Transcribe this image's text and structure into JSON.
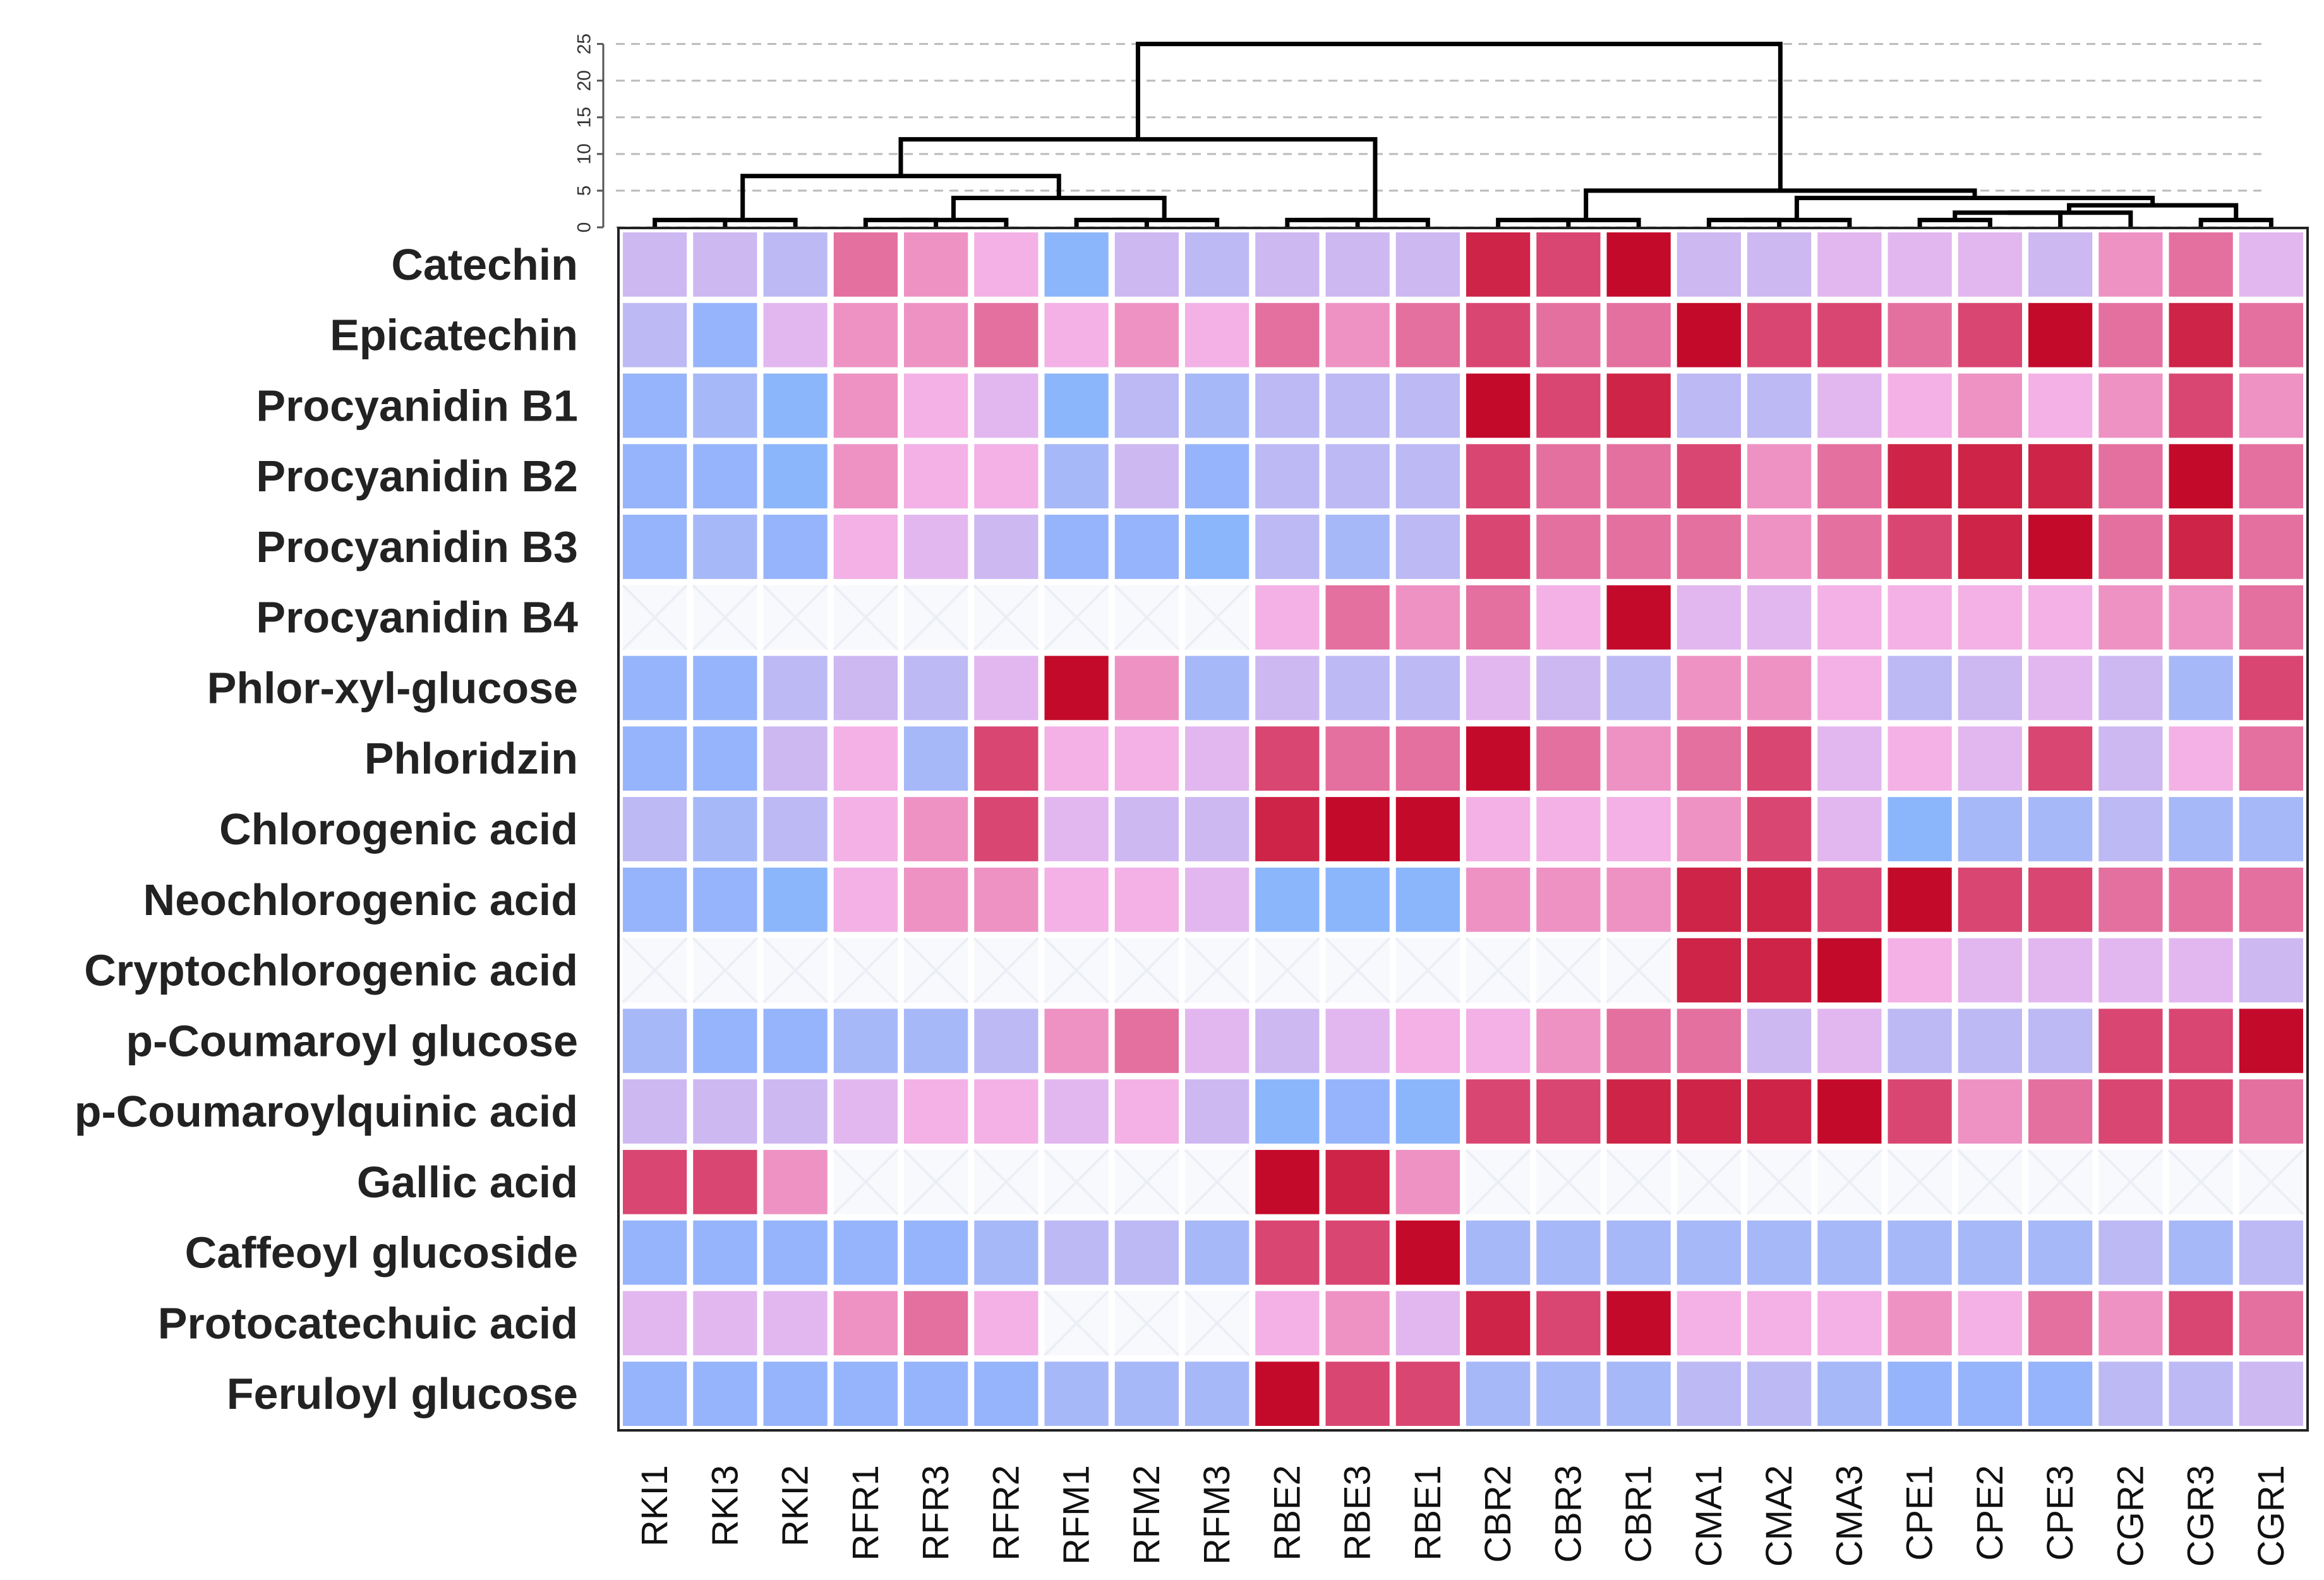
{
  "chart_data": {
    "type": "heatmap",
    "title": "",
    "rows": [
      "Catechin",
      "Epicatechin",
      "Procyanidin B1",
      "Procyanidin B2",
      "Procyanidin B3",
      "Procyanidin B4",
      "Phlor-xyl-glucose",
      "Phloridzin",
      "Chlorogenic acid",
      "Neochlorogenic acid",
      "Cryptochlorogenic acid",
      "p-Coumaroyl glucose",
      "p-Coumaroylquinic acid",
      "Gallic acid",
      "Caffeoyl glucoside",
      "Protocatechuic acid",
      "Feruloyl glucose"
    ],
    "columns": [
      "RKI1",
      "RKI3",
      "RKI2",
      "RFR1",
      "RFR3",
      "RFR2",
      "RFM1",
      "RFM2",
      "RFM3",
      "RBE2",
      "RBE3",
      "RBE1",
      "CBR2",
      "CBR3",
      "CBR1",
      "CMA1",
      "CMA2",
      "CMA3",
      "CPE1",
      "CPE2",
      "CPE3",
      "CGR2",
      "CGR3",
      "CGR1"
    ],
    "value_scale": "level from -4 (blue) through 0 (lilac) to +7 (dark red); null = not detected",
    "values": [
      [
        0,
        0,
        -1,
        4,
        3,
        2,
        -4,
        0,
        -1,
        0,
        0,
        0,
        6,
        5,
        7,
        0,
        0,
        1,
        1,
        1,
        0,
        3,
        4,
        1
      ],
      [
        -1,
        -3,
        1,
        3,
        3,
        4,
        2,
        3,
        2,
        4,
        3,
        4,
        5,
        4,
        4,
        7,
        5,
        5,
        4,
        5,
        7,
        4,
        6,
        4
      ],
      [
        -3,
        -2,
        -4,
        3,
        2,
        1,
        -4,
        -1,
        -2,
        -1,
        -1,
        -1,
        7,
        5,
        6,
        -1,
        -1,
        1,
        2,
        3,
        2,
        3,
        5,
        3
      ],
      [
        -3,
        -3,
        -4,
        3,
        2,
        2,
        -2,
        0,
        -3,
        -1,
        -1,
        -1,
        5,
        4,
        4,
        5,
        3,
        4,
        6,
        6,
        6,
        4,
        7,
        4
      ],
      [
        -3,
        -2,
        -3,
        2,
        1,
        0,
        -3,
        -3,
        -4,
        -1,
        -2,
        -1,
        5,
        4,
        4,
        4,
        3,
        4,
        5,
        6,
        7,
        4,
        6,
        4
      ],
      [
        null,
        null,
        null,
        null,
        null,
        null,
        null,
        null,
        null,
        2,
        4,
        3,
        4,
        2,
        7,
        1,
        1,
        2,
        2,
        2,
        2,
        3,
        3,
        4
      ],
      [
        -3,
        -3,
        -1,
        0,
        -1,
        1,
        7,
        3,
        -2,
        0,
        -1,
        -1,
        1,
        0,
        -1,
        3,
        3,
        2,
        -1,
        0,
        1,
        0,
        -2,
        5
      ],
      [
        -3,
        -3,
        0,
        2,
        -2,
        5,
        2,
        2,
        1,
        5,
        4,
        4,
        7,
        4,
        3,
        4,
        5,
        1,
        2,
        1,
        5,
        0,
        2,
        4
      ],
      [
        -1,
        -2,
        -1,
        2,
        3,
        5,
        1,
        0,
        0,
        6,
        7,
        7,
        2,
        2,
        2,
        3,
        5,
        1,
        -4,
        -2,
        -2,
        -1,
        -2,
        -2
      ],
      [
        -3,
        -3,
        -4,
        2,
        3,
        3,
        2,
        2,
        1,
        -4,
        -4,
        -4,
        3,
        3,
        3,
        6,
        6,
        5,
        7,
        5,
        5,
        4,
        4,
        4
      ],
      [
        null,
        null,
        null,
        null,
        null,
        null,
        null,
        null,
        null,
        null,
        null,
        null,
        null,
        null,
        null,
        6,
        6,
        7,
        2,
        1,
        1,
        1,
        1,
        0
      ],
      [
        -2,
        -3,
        -3,
        -2,
        -2,
        -1,
        3,
        4,
        1,
        0,
        1,
        2,
        2,
        3,
        4,
        4,
        0,
        1,
        -1,
        -1,
        -1,
        5,
        5,
        7
      ],
      [
        0,
        0,
        0,
        1,
        2,
        2,
        1,
        2,
        0,
        -4,
        -3,
        -4,
        5,
        5,
        6,
        6,
        6,
        7,
        5,
        3,
        4,
        5,
        5,
        4
      ],
      [
        5,
        5,
        3,
        null,
        null,
        null,
        null,
        null,
        null,
        7,
        6,
        3,
        null,
        null,
        null,
        null,
        null,
        null,
        null,
        null,
        null,
        null,
        null,
        null
      ],
      [
        -3,
        -3,
        -3,
        -3,
        -3,
        -2,
        -1,
        -1,
        -2,
        5,
        5,
        7,
        -2,
        -2,
        -2,
        -2,
        -2,
        -2,
        -2,
        -2,
        -2,
        -1,
        -2,
        -1
      ],
      [
        1,
        1,
        1,
        3,
        4,
        2,
        null,
        null,
        null,
        2,
        3,
        1,
        6,
        5,
        7,
        2,
        2,
        2,
        3,
        2,
        4,
        3,
        5,
        4
      ],
      [
        -3,
        -3,
        -3,
        -3,
        -3,
        -3,
        -2,
        -2,
        -2,
        7,
        5,
        5,
        -2,
        -2,
        -2,
        -1,
        -1,
        -2,
        -3,
        -3,
        -3,
        -1,
        -1,
        0
      ]
    ],
    "dendrogram": {
      "axis_ticks": [
        "0",
        "5",
        "10",
        "15",
        "20",
        "25"
      ],
      "ylim": [
        0,
        26
      ],
      "merges": [
        {
          "left": "RKI1",
          "right": "RKI3",
          "height": 1
        },
        {
          "left": "RFR1",
          "right": "RFR3",
          "height": 1
        },
        {
          "left": "RFR3",
          "right": "RFR2",
          "height": 1
        },
        {
          "left": "RFM1",
          "right": "RFM2",
          "height": 1
        },
        {
          "left": "RFM2",
          "right": "RFM3",
          "height": 1
        },
        {
          "left": "RBE2",
          "right": "RBE3",
          "height": 1
        },
        {
          "left": "RBE3",
          "right": "RBE1",
          "height": 1
        },
        {
          "left": "CBR2",
          "right": "CBR3",
          "height": 1
        },
        {
          "left": "CBR3",
          "right": "CBR1",
          "height": 1
        },
        {
          "left": "CMA1",
          "right": "CMA2",
          "height": 1
        },
        {
          "left": "CPE1",
          "right": "CPE2",
          "height": 1
        },
        {
          "left": "CGR3",
          "right": "CGR1",
          "height": 1
        },
        {
          "left": "RKI1-RKI3",
          "right": "RKI2",
          "height": 1
        },
        {
          "left": "CMA1-CMA2",
          "right": "CMA3",
          "height": 1
        },
        {
          "left": "CPE1-CPE2",
          "right": "CPE3",
          "height": 2
        },
        {
          "left": "CPE",
          "right": "CGR2",
          "height": 2
        },
        {
          "left": "CPE-CGR2",
          "right": "CGR3-CGR1",
          "height": 3
        },
        {
          "left": "CMA",
          "right": "CPE-CGR",
          "height": 4
        },
        {
          "left": "CBR",
          "right": "CMA-CPE-CGR",
          "height": 5
        },
        {
          "left": "RFR",
          "right": "RFM",
          "height": 4
        },
        {
          "left": "RKI",
          "right": "RFR-RFM",
          "height": 7
        },
        {
          "left": "RKI-RFR-RFM",
          "right": "RBE",
          "height": 12
        },
        {
          "left": "R-cluster",
          "right": "C-cluster",
          "height": 25
        }
      ]
    }
  }
}
